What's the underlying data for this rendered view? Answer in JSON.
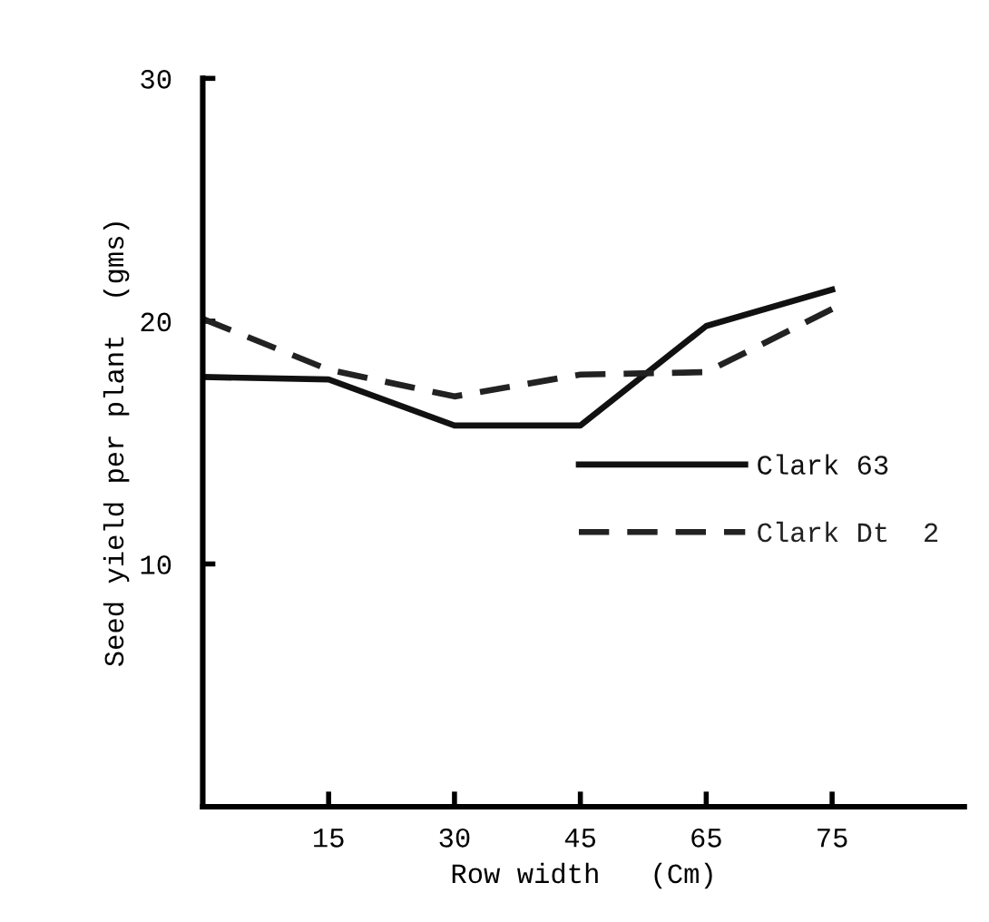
{
  "chart_data": {
    "type": "line",
    "xlabel": "Row width   (Cm)",
    "ylabel": "Seed yield per plant  (gms)",
    "categories": [
      null,
      "15",
      "30",
      "45",
      "65",
      "75"
    ],
    "series": [
      {
        "name": "Clark 63",
        "color": "#111111",
        "line_style": "solid",
        "values": [
          17.7,
          17.6,
          15.7,
          15.7,
          19.8,
          21.3
        ]
      },
      {
        "name": "Clark Dt  2",
        "color": "#222222",
        "line_style": "dashed",
        "values": [
          20.1,
          18,
          16.9,
          17.8,
          17.9,
          20.5
        ]
      }
    ],
    "ylim": [
      0,
      30
    ],
    "yticks": [
      {
        "value": 0,
        "label": null
      },
      10,
      20,
      30
    ],
    "grid": false,
    "legend": "right",
    "marker": "none"
  }
}
